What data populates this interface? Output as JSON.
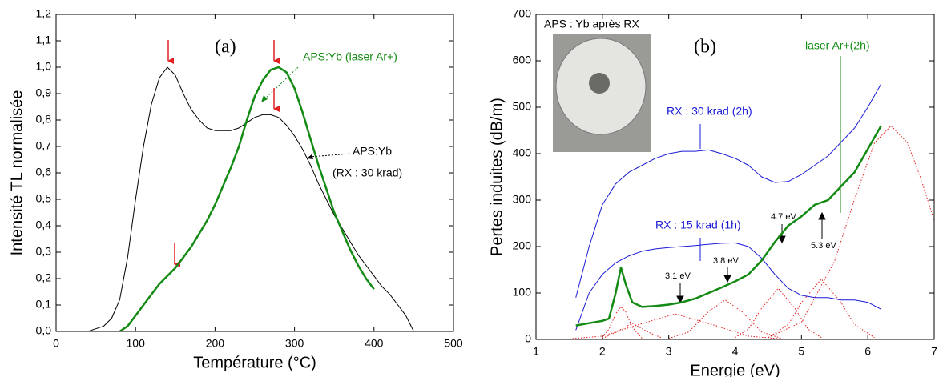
{
  "chart_data": [
    {
      "type": "line",
      "xlabel": "Température (°C)",
      "ylabel": "Intensité TL normalisée",
      "xlim": [
        0,
        500
      ],
      "xticks": [
        0,
        100,
        200,
        300,
        400,
        500
      ],
      "ylim": [
        0,
        1.2
      ],
      "yticks": [
        {
          "value": 0,
          "label": "0,0"
        },
        {
          "value": 0.1,
          "label": "0,1"
        },
        {
          "value": 0.2,
          "label": "0,2"
        },
        {
          "value": 0.3,
          "label": "0,3"
        },
        {
          "value": 0.4,
          "label": "0,4"
        },
        {
          "value": 0.5,
          "label": "0,5"
        },
        {
          "value": 0.6,
          "label": "0,6"
        },
        {
          "value": 0.7,
          "label": "0,7"
        },
        {
          "value": 0.8,
          "label": "0,8"
        },
        {
          "value": 0.9,
          "label": "0,9"
        },
        {
          "value": 1.0,
          "label": "1,0"
        },
        {
          "value": 1.1,
          "label": "1,1"
        },
        {
          "value": 1.2,
          "label": "1,2"
        }
      ],
      "annotations": [
        "(a)",
        "(RX : 30 krad)"
      ],
      "series": [
        {
          "name": "APS:Yb",
          "color": "#000000",
          "linewidth": 1,
          "x": [
            40,
            50,
            60,
            70,
            80,
            90,
            100,
            110,
            120,
            130,
            140,
            150,
            160,
            170,
            180,
            190,
            200,
            210,
            220,
            230,
            240,
            250,
            260,
            270,
            280,
            290,
            300,
            310,
            320,
            330,
            340,
            350,
            360,
            370,
            380,
            390,
            400,
            410,
            420,
            430,
            440,
            450
          ],
          "values": [
            0,
            0.01,
            0.02,
            0.05,
            0.12,
            0.28,
            0.5,
            0.7,
            0.86,
            0.96,
            1.0,
            0.97,
            0.9,
            0.84,
            0.8,
            0.77,
            0.76,
            0.76,
            0.76,
            0.77,
            0.79,
            0.81,
            0.82,
            0.82,
            0.81,
            0.78,
            0.74,
            0.69,
            0.63,
            0.56,
            0.5,
            0.44,
            0.39,
            0.34,
            0.29,
            0.25,
            0.21,
            0.17,
            0.14,
            0.1,
            0.06,
            0.0
          ]
        },
        {
          "name": "APS:Yb (laser Ar+)",
          "color": "#138a13",
          "linewidth": 2.5,
          "x": [
            80,
            90,
            100,
            110,
            120,
            130,
            140,
            150,
            160,
            170,
            180,
            190,
            200,
            210,
            220,
            230,
            240,
            250,
            260,
            270,
            280,
            290,
            300,
            310,
            320,
            330,
            340,
            350,
            360,
            370,
            380,
            390,
            400
          ],
          "values": [
            0,
            0.02,
            0.06,
            0.1,
            0.14,
            0.18,
            0.21,
            0.24,
            0.28,
            0.32,
            0.37,
            0.42,
            0.48,
            0.55,
            0.62,
            0.7,
            0.8,
            0.89,
            0.95,
            0.99,
            1.0,
            0.98,
            0.92,
            0.83,
            0.73,
            0.63,
            0.54,
            0.45,
            0.38,
            0.31,
            0.25,
            0.2,
            0.16
          ]
        }
      ]
    },
    {
      "type": "line",
      "xlabel": "Energie (eV)",
      "ylabel": "Pertes induites (dB/m)",
      "xlim": [
        1,
        7
      ],
      "xticks": [
        1,
        2,
        3,
        4,
        5,
        6,
        7
      ],
      "ylim": [
        0,
        700
      ],
      "yticks": [
        0,
        100,
        200,
        300,
        400,
        500,
        600,
        700
      ],
      "annotations": [
        "(b)",
        "APS : Yb après RX",
        "3.1 eV",
        "3.8 eV",
        "4.7 eV",
        "5.3 eV"
      ],
      "series": [
        {
          "name": "RX : 30 krad (2h)",
          "color": "#1a1ad6",
          "linewidth": 1,
          "x": [
            1.6,
            1.8,
            2.0,
            2.2,
            2.4,
            2.6,
            2.8,
            3.0,
            3.2,
            3.4,
            3.6,
            3.8,
            4.0,
            4.2,
            4.4,
            4.6,
            4.8,
            5.0,
            5.2,
            5.4,
            5.6,
            5.8,
            6.0,
            6.2
          ],
          "values": [
            90,
            200,
            290,
            335,
            360,
            375,
            390,
            400,
            405,
            405,
            408,
            400,
            390,
            375,
            350,
            338,
            340,
            355,
            375,
            395,
            425,
            455,
            500,
            550
          ]
        },
        {
          "name": "RX : 15 krad (1h)",
          "color": "#1a1ad6",
          "linewidth": 1,
          "x": [
            1.6,
            1.8,
            2.0,
            2.2,
            2.4,
            2.6,
            2.8,
            3.0,
            3.2,
            3.4,
            3.6,
            3.8,
            4.0,
            4.2,
            4.4,
            4.6,
            4.8,
            5.0,
            5.2,
            5.4,
            5.6,
            5.8,
            6.0,
            6.2
          ],
          "values": [
            20,
            100,
            140,
            165,
            180,
            190,
            195,
            198,
            200,
            202,
            205,
            207,
            208,
            200,
            175,
            140,
            110,
            95,
            90,
            90,
            85,
            85,
            80,
            65
          ]
        },
        {
          "name": "laser Ar+(2h)",
          "color": "#138a13",
          "linewidth": 2.5,
          "x": [
            1.6,
            1.8,
            2.0,
            2.1,
            2.2,
            2.28,
            2.35,
            2.45,
            2.6,
            2.8,
            3.0,
            3.2,
            3.4,
            3.6,
            3.8,
            4.0,
            4.2,
            4.4,
            4.6,
            4.8,
            5.0,
            5.2,
            5.4,
            5.6,
            5.8,
            6.0,
            6.2
          ],
          "values": [
            30,
            35,
            40,
            45,
            100,
            155,
            120,
            80,
            70,
            72,
            75,
            80,
            88,
            100,
            112,
            125,
            140,
            170,
            210,
            245,
            265,
            290,
            300,
            330,
            360,
            410,
            460
          ]
        },
        {
          "color": "#e02020",
          "linewidth": 1,
          "dashed": true,
          "x": [
            2.0,
            2.1,
            2.2,
            2.28,
            2.35,
            2.45,
            2.6
          ],
          "values": [
            5,
            22,
            55,
            70,
            60,
            26,
            2
          ]
        },
        {
          "color": "#e02020",
          "linewidth": 1,
          "dashed": true,
          "x": [
            2.0,
            2.2,
            2.45,
            2.7,
            2.9
          ],
          "values": [
            2,
            15,
            35,
            15,
            3
          ]
        },
        {
          "color": "#e02020",
          "linewidth": 1,
          "dashed": true,
          "x": [
            1.0,
            1.5,
            2.0,
            2.5,
            3.1,
            3.7,
            4.2,
            4.7
          ],
          "values": [
            0,
            1,
            7,
            30,
            55,
            30,
            7,
            1
          ]
        },
        {
          "color": "#e02020",
          "linewidth": 1,
          "dashed": true,
          "x": [
            3.0,
            3.3,
            3.6,
            3.85,
            4.1,
            4.4,
            4.7
          ],
          "values": [
            2,
            16,
            60,
            85,
            60,
            16,
            2
          ]
        },
        {
          "color": "#e02020",
          "linewidth": 1,
          "dashed": true,
          "x": [
            4.0,
            4.2,
            4.4,
            4.65,
            4.9,
            5.1,
            5.3
          ],
          "values": [
            4,
            22,
            67,
            110,
            67,
            22,
            4
          ]
        },
        {
          "color": "#e02020",
          "linewidth": 1,
          "dashed": true,
          "x": [
            4.5,
            4.8,
            5.0,
            5.3,
            5.6,
            5.8,
            6.1
          ],
          "values": [
            4,
            32,
            79,
            130,
            79,
            32,
            4
          ]
        },
        {
          "color": "#e02020",
          "linewidth": 1,
          "dashed": true,
          "x": [
            4.5,
            5.0,
            5.5,
            5.8,
            6.1,
            6.35,
            6.6,
            6.8,
            7.0
          ],
          "values": [
            4,
            37,
            169,
            302,
            423,
            460,
            423,
            346,
            256
          ]
        }
      ]
    }
  ]
}
